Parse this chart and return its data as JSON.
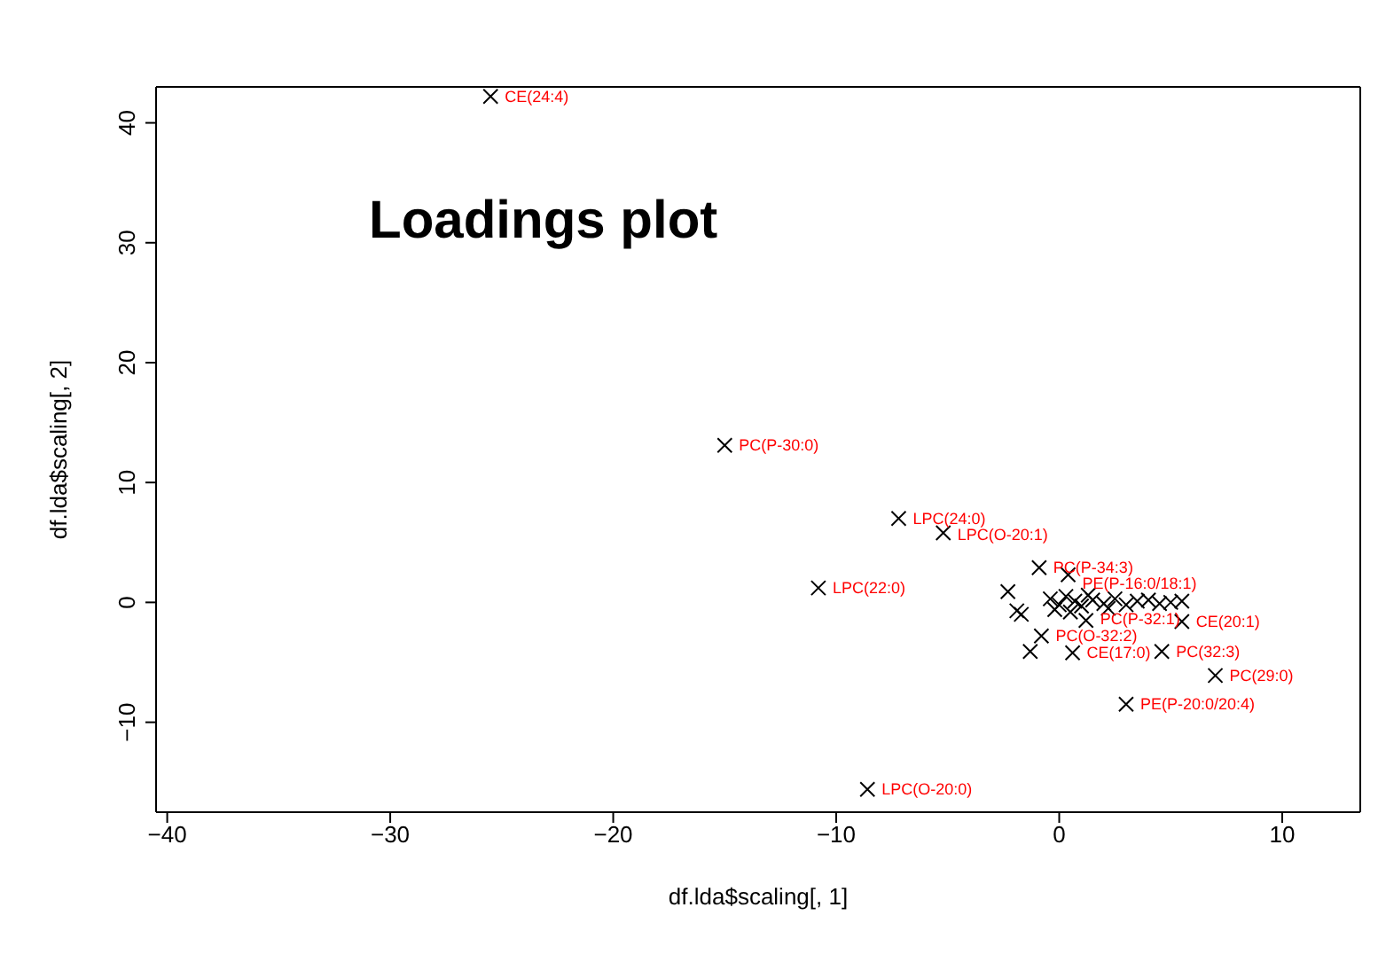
{
  "chart_data": {
    "type": "scatter",
    "title": "Loadings plot",
    "xlabel": "df.lda$scaling[, 1]",
    "ylabel": "df.lda$scaling[, 2]",
    "xlim": [
      -40.5,
      13.5
    ],
    "ylim": [
      -17.5,
      43
    ],
    "xticks": [
      -40,
      -30,
      -20,
      -10,
      0,
      10
    ],
    "yticks": [
      -10,
      0,
      10,
      20,
      30,
      40
    ],
    "grid": false,
    "legend": false,
    "marker": "cross",
    "series": [
      {
        "color": "#000000",
        "x": [
          -25.5,
          -15.0,
          -7.2,
          -5.2,
          -10.8,
          -8.6,
          -0.9,
          0.4,
          -2.3,
          -0.8,
          -1.3,
          0.6,
          4.6,
          7.0,
          3.0,
          5.5,
          1.2,
          -1.9,
          -1.7,
          -0.4,
          0.0,
          0.3,
          0.7,
          1.0,
          1.5,
          2.0,
          2.5,
          3.0,
          3.5,
          4.0,
          4.5,
          5.0,
          5.5,
          -0.2,
          0.5,
          1.3,
          2.2
        ],
        "values": [
          42.2,
          13.1,
          7.0,
          5.8,
          1.2,
          -15.6,
          2.9,
          2.3,
          0.9,
          -2.8,
          -4.1,
          -4.2,
          -4.1,
          -6.1,
          -8.5,
          -1.6,
          -1.5,
          -0.7,
          -1.0,
          0.3,
          -0.2,
          0.5,
          0.1,
          -0.3,
          0.2,
          -0.1,
          0.3,
          -0.2,
          0.1,
          0.2,
          -0.1,
          0.0,
          0.1,
          -0.6,
          -0.8,
          0.6,
          -0.5
        ],
        "value_labels": [
          "CE(24:4)",
          "PC(P-30:0)",
          "LPC(24:0)",
          "LPC(O-20:1)",
          "LPC(22:0)",
          "LPC(O-20:0)",
          "PC(P-34:3)",
          "PE(P-16:0/18:1)",
          null,
          "PC(O-32:2)",
          null,
          "CE(17:0)",
          "PC(32:3)",
          "PC(29:0)",
          "PE(P-20:0/20:4)",
          "CE(20:1)",
          "PC(P-32:1)",
          null,
          null,
          null,
          null,
          null,
          null,
          null,
          null,
          null,
          null,
          null,
          null,
          null,
          null,
          null,
          null,
          null,
          null,
          null,
          null
        ]
      }
    ]
  }
}
